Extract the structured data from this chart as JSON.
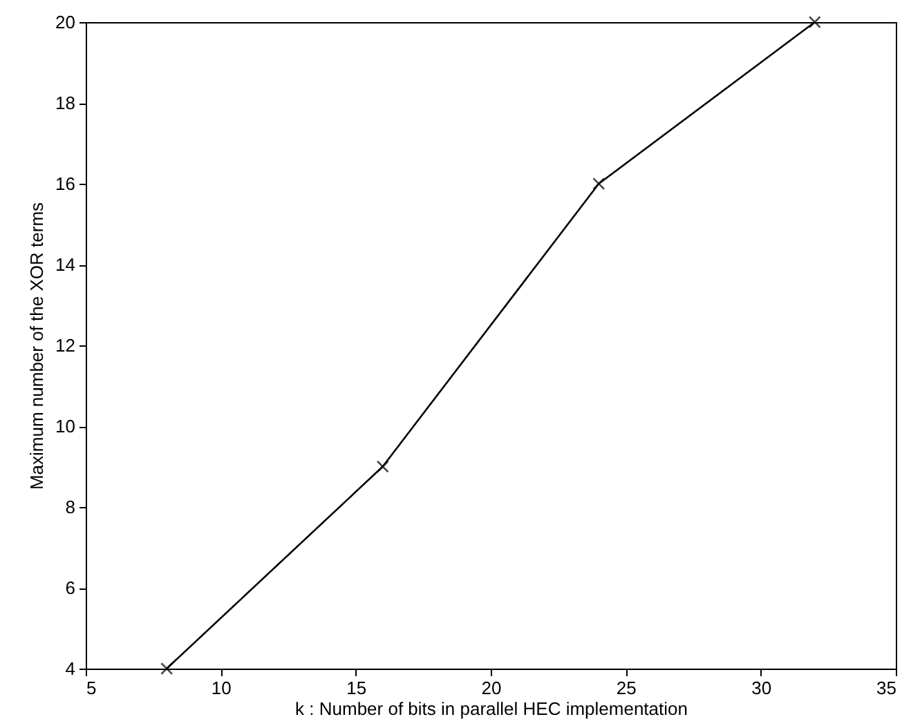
{
  "chart_data": {
    "type": "line",
    "xlabel": "k : Number of bits in parallel HEC implementation",
    "ylabel": "Maximum number of the XOR terms",
    "x": [
      8,
      16,
      24,
      32
    ],
    "series": [
      {
        "color": "#000000",
        "values": [
          4,
          9,
          16,
          20
        ]
      }
    ],
    "xlim": [
      5,
      35
    ],
    "xticks": [
      5,
      10,
      15,
      20,
      25,
      30,
      35
    ],
    "ylim": [
      4,
      20
    ],
    "yticks": [
      4,
      6,
      8,
      10,
      12,
      14,
      16,
      18,
      20
    ],
    "marker": "cross",
    "line_style": "solid"
  }
}
